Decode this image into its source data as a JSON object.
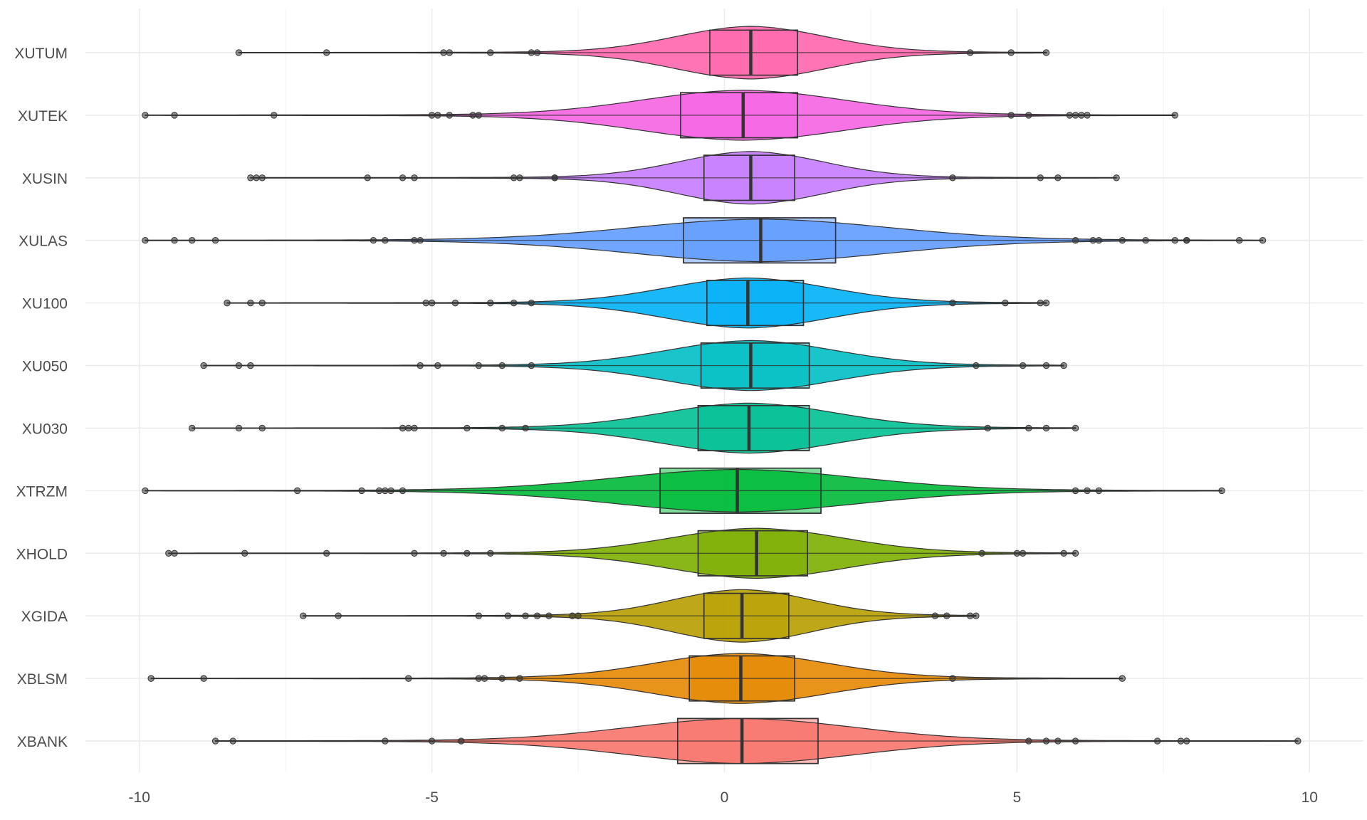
{
  "chart_data": {
    "type": "violin",
    "title": "",
    "xlabel": "",
    "ylabel": "",
    "xlim": [
      -10.8,
      10.8
    ],
    "x_ticks": [
      -10,
      -5,
      0,
      5,
      10
    ],
    "x_tick_labels": [
      "-10",
      "-5",
      "0",
      "5",
      "10"
    ],
    "grid": true,
    "legend": "none",
    "categories": [
      "XUTUM",
      "XUTEK",
      "XUSIN",
      "XULAS",
      "XU100",
      "XU050",
      "XU030",
      "XTRZM",
      "XHOLD",
      "XGIDA",
      "XBLSM",
      "XBANK"
    ],
    "series": [
      {
        "category": "XUTUM",
        "color": "#FF65AC",
        "q1": -0.25,
        "median": 0.45,
        "q3": 1.25,
        "whisker_low": -8.3,
        "whisker_high": 5.5,
        "violin_min": -8.3,
        "violin_max": 5.5,
        "density_sd": 1.3,
        "density_width": 0.42,
        "outliers": [
          -8.3,
          -6.8,
          -4.8,
          -4.7,
          -4.0,
          -3.3,
          -3.2,
          4.2,
          4.9,
          5.5
        ]
      },
      {
        "category": "XUTEK",
        "color": "#F564E3",
        "q1": -0.75,
        "median": 0.32,
        "q3": 1.25,
        "whisker_low": -9.9,
        "whisker_high": 7.7,
        "violin_min": -9.9,
        "violin_max": 7.7,
        "density_sd": 1.75,
        "density_width": 0.4,
        "outliers": [
          -9.9,
          -9.4,
          -7.7,
          -5.0,
          -4.9,
          -4.7,
          -4.3,
          -4.2,
          4.9,
          5.2,
          5.9,
          6.0,
          6.2,
          6.1,
          7.7
        ]
      },
      {
        "category": "XUSIN",
        "color": "#C77CFF",
        "q1": -0.35,
        "median": 0.45,
        "q3": 1.2,
        "whisker_low": -8.1,
        "whisker_high": 6.7,
        "violin_min": -8.1,
        "violin_max": 6.7,
        "density_sd": 1.25,
        "density_width": 0.42,
        "outliers": [
          -8.1,
          -8.0,
          -7.9,
          -6.1,
          -5.5,
          -5.3,
          -3.6,
          -3.5,
          -2.9,
          -2.9,
          3.9,
          5.4,
          5.7,
          6.7
        ]
      },
      {
        "category": "XULAS",
        "color": "#619CFF",
        "q1": -0.7,
        "median": 0.62,
        "q3": 1.9,
        "whisker_low": -9.9,
        "whisker_high": 9.2,
        "violin_min": -9.9,
        "violin_max": 9.2,
        "density_sd": 2.2,
        "density_width": 0.34,
        "outliers": [
          -9.9,
          -9.4,
          -9.1,
          -8.7,
          -6.0,
          -5.8,
          -5.3,
          -5.2,
          6.0,
          6.3,
          6.4,
          6.8,
          7.2,
          7.7,
          7.9,
          7.9,
          8.8,
          9.2
        ]
      },
      {
        "category": "XU100",
        "color": "#00B0F6",
        "q1": -0.3,
        "median": 0.4,
        "q3": 1.35,
        "whisker_low": -8.5,
        "whisker_high": 5.5,
        "violin_min": -8.5,
        "violin_max": 5.5,
        "density_sd": 1.4,
        "density_width": 0.4,
        "outliers": [
          -8.5,
          -8.1,
          -7.9,
          -5.1,
          -5.0,
          -4.6,
          -4.0,
          -3.6,
          -3.3,
          3.9,
          4.8,
          5.4,
          5.5
        ]
      },
      {
        "category": "XU050",
        "color": "#00BFC4",
        "q1": -0.4,
        "median": 0.45,
        "q3": 1.45,
        "whisker_low": -8.9,
        "whisker_high": 5.8,
        "violin_min": -8.9,
        "violin_max": 5.8,
        "density_sd": 1.45,
        "density_width": 0.4,
        "outliers": [
          -8.9,
          -8.3,
          -8.1,
          -5.2,
          -4.9,
          -4.2,
          -3.8,
          -3.3,
          4.3,
          5.1,
          5.5,
          5.8
        ]
      },
      {
        "category": "XU030",
        "color": "#00C094",
        "q1": -0.45,
        "median": 0.42,
        "q3": 1.45,
        "whisker_low": -9.1,
        "whisker_high": 6.0,
        "violin_min": -9.1,
        "violin_max": 6.0,
        "density_sd": 1.5,
        "density_width": 0.4,
        "outliers": [
          -9.1,
          -8.3,
          -7.9,
          -5.5,
          -5.4,
          -5.3,
          -4.4,
          -3.8,
          -3.4,
          4.5,
          5.2,
          5.5,
          6.0
        ]
      },
      {
        "category": "XTRZM",
        "color": "#00BA38",
        "q1": -1.1,
        "median": 0.22,
        "q3": 1.65,
        "whisker_low": -9.9,
        "whisker_high": 8.5,
        "violin_min": -9.9,
        "violin_max": 8.5,
        "density_sd": 2.1,
        "density_width": 0.34,
        "outliers": [
          -9.9,
          -7.3,
          -6.2,
          -5.9,
          -5.8,
          -5.7,
          -5.5,
          6.0,
          6.2,
          6.4,
          8.5
        ]
      },
      {
        "category": "XHOLD",
        "color": "#7CAE00",
        "q1": -0.45,
        "median": 0.55,
        "q3": 1.42,
        "whisker_low": -9.5,
        "whisker_high": 6.0,
        "violin_min": -9.5,
        "violin_max": 6.0,
        "density_sd": 1.5,
        "density_width": 0.4,
        "outliers": [
          -9.5,
          -9.4,
          -8.2,
          -6.8,
          -5.3,
          -4.8,
          -4.4,
          -4.0,
          4.4,
          5.0,
          5.1,
          5.8,
          6.0
        ]
      },
      {
        "category": "XGIDA",
        "color": "#B79F00",
        "q1": -0.35,
        "median": 0.3,
        "q3": 1.1,
        "whisker_low": -7.2,
        "whisker_high": 4.3,
        "violin_min": -7.2,
        "violin_max": 4.3,
        "density_sd": 1.2,
        "density_width": 0.42,
        "outliers": [
          -7.2,
          -6.6,
          -4.2,
          -3.7,
          -3.4,
          -3.2,
          -3.0,
          -2.6,
          -2.5,
          3.6,
          3.8,
          4.2,
          4.3
        ]
      },
      {
        "category": "XBLSM",
        "color": "#E58700",
        "q1": -0.6,
        "median": 0.28,
        "q3": 1.2,
        "whisker_low": -9.8,
        "whisker_high": 6.8,
        "violin_min": -9.8,
        "violin_max": 6.8,
        "density_sd": 1.5,
        "density_width": 0.4,
        "outliers": [
          -9.8,
          -8.9,
          -5.4,
          -4.2,
          -4.1,
          -3.8,
          -3.5,
          3.9,
          6.8
        ]
      },
      {
        "category": "XBANK",
        "color": "#F8766D",
        "q1": -0.8,
        "median": 0.3,
        "q3": 1.6,
        "whisker_low": -8.7,
        "whisker_high": 9.8,
        "violin_min": -8.7,
        "violin_max": 9.8,
        "density_sd": 1.95,
        "density_width": 0.36,
        "outliers": [
          -8.7,
          -8.4,
          -5.8,
          -5.0,
          -4.5,
          5.2,
          5.5,
          5.7,
          6.0,
          7.4,
          7.8,
          7.9,
          9.8
        ]
      }
    ]
  }
}
